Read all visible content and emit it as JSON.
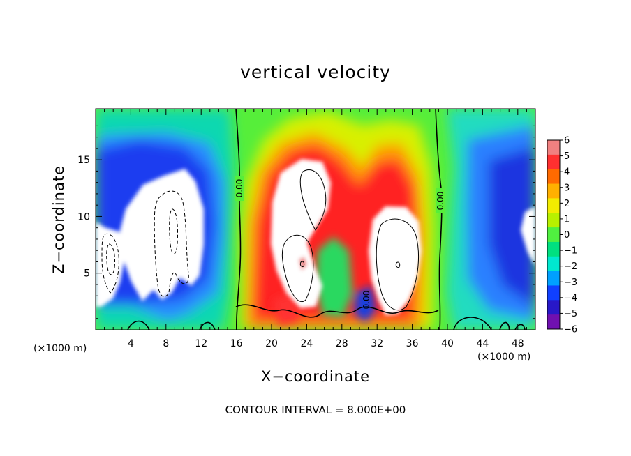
{
  "chart_data": {
    "type": "heatmap",
    "title": "vertical velocity",
    "xlabel": "X−coordinate",
    "ylabel": "Z−coordinate",
    "x_unit": "(×1000 m)",
    "y_unit": "(×1000 m)",
    "footer": "CONTOUR INTERVAL = 8.000E+00",
    "xlim": [
      0,
      50
    ],
    "ylim": [
      0,
      19.5
    ],
    "xticks": [
      4,
      8,
      12,
      16,
      20,
      24,
      28,
      32,
      36,
      40,
      44,
      48
    ],
    "yticks": [
      5,
      10,
      15
    ],
    "colorbar": {
      "min": -6,
      "max": 6,
      "labels": [
        "6",
        "5",
        "4",
        "3",
        "2",
        "1",
        "0",
        "−1",
        "−2",
        "−3",
        "−4",
        "−5",
        "−6"
      ],
      "colors": [
        "#f08080",
        "#ff3030",
        "#ff6a00",
        "#ffb000",
        "#f2ec00",
        "#b8f000",
        "#50f040",
        "#00e080",
        "#00e8d0",
        "#00a0ff",
        "#1040ff",
        "#2818c8",
        "#7010b0"
      ]
    },
    "contour_labels": [
      "0.00",
      "0.00",
      "0.00"
    ],
    "zero_contours_x": [
      16,
      39
    ],
    "updraft_centers": [
      {
        "x": 23.5,
        "z": 6,
        "peak": "above 6"
      },
      {
        "x": 34,
        "z": 6,
        "peak": "above 6"
      }
    ],
    "downdraft_regions": [
      {
        "x": 8,
        "z": 9,
        "min": "below −6"
      },
      {
        "x": 2,
        "z": 6,
        "min": "below −6"
      },
      {
        "x": 49,
        "z": 8,
        "min": "below −6"
      }
    ]
  }
}
